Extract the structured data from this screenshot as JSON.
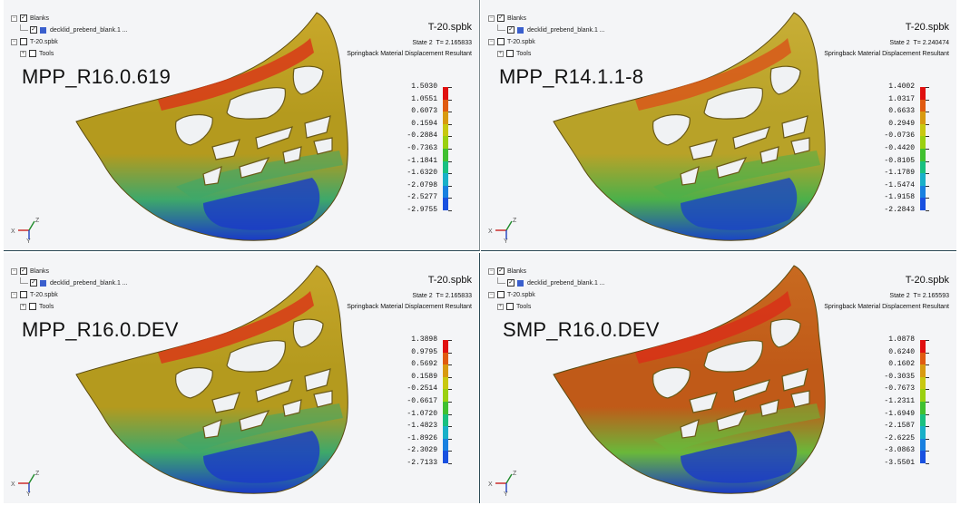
{
  "tree": {
    "blanks": "Blanks",
    "blank_item": "decklid_prebend_blank.1 ...",
    "tool_group": "T-20.spbk",
    "tools": "Tools"
  },
  "panels": [
    {
      "file": "T-20.spbk",
      "state": "State 2",
      "time": "T= 2.165833",
      "result": "Springback Material Displacement Resultant",
      "title": "MPP_R16.0.619",
      "legend": [
        "1.5030",
        "1.0551",
        "0.6073",
        "0.1594",
        "-0.2884",
        "-0.7363",
        "-1.1841",
        "-1.6320",
        "-2.0798",
        "-2.5277",
        "-2.9755"
      ],
      "part_colors": {
        "body": "#b49a1e",
        "top": "#c9a82a",
        "hot": "#d83a18",
        "cold": "#1a39c8",
        "mid": "#3ea86a"
      }
    },
    {
      "file": "T-20.spbk",
      "state": "State 2",
      "time": "T= 2.240474",
      "result": "Springback Material Displacement Resultant",
      "title": "MPP_R14.1.1-8",
      "legend": [
        "1.4002",
        "1.0317",
        "0.6633",
        "0.2949",
        "-0.0736",
        "-0.4420",
        "-0.8105",
        "-1.1789",
        "-1.5474",
        "-1.9158",
        "-2.2843"
      ],
      "part_colors": {
        "body": "#b8a228",
        "top": "#c8ae36",
        "hot": "#d8581a",
        "cold": "#1a44c6",
        "mid": "#4cb04a"
      }
    },
    {
      "file": "T-20.spbk",
      "state": "State 2",
      "time": "T= 2.165833",
      "result": "Springback Material Displacement Resultant",
      "title": "MPP_R16.0.DEV",
      "legend": [
        "1.3898",
        "0.9795",
        "0.5692",
        "0.1589",
        "-0.2514",
        "-0.6617",
        "-1.0720",
        "-1.4823",
        "-1.8926",
        "-2.3029",
        "-2.7133"
      ],
      "part_colors": {
        "body": "#b49a1e",
        "top": "#c6a62a",
        "hot": "#d83a18",
        "cold": "#1a39c8",
        "mid": "#3ea86a"
      }
    },
    {
      "file": "T-20.spbk",
      "state": "State 2",
      "time": "T= 2.165593",
      "result": "Springback Material Displacement Resultant",
      "title": "SMP_R16.0.DEV",
      "legend": [
        "1.0878",
        "0.6240",
        "0.1602",
        "-0.3035",
        "-0.7673",
        "-1.2311",
        "-1.6949",
        "-2.1587",
        "-2.6225",
        "-3.0863",
        "-3.5501"
      ],
      "part_colors": {
        "body": "#c05a18",
        "top": "#c86a20",
        "hot": "#d83018",
        "cold": "#1a39c8",
        "mid": "#6ab83a"
      }
    }
  ],
  "legend_colors": [
    "#e01010",
    "#e05a10",
    "#d89a10",
    "#c8c810",
    "#9ad010",
    "#40c030",
    "#18c080",
    "#18b0c8",
    "#1880e0",
    "#1850e0",
    "#0a10c0"
  ],
  "axes": {
    "x": "X",
    "y": "Y",
    "z": "Z"
  }
}
